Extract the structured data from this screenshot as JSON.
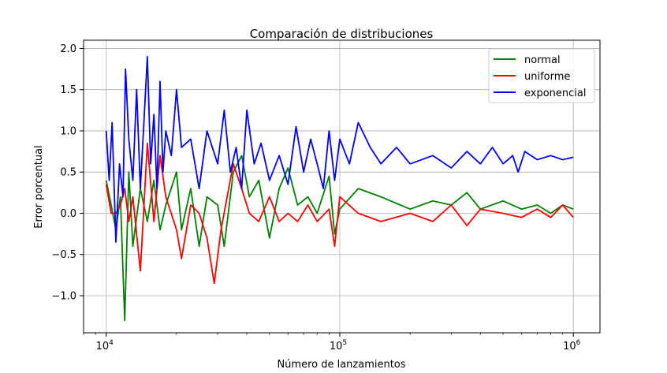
{
  "chart_data": {
    "type": "line",
    "title": "Comparación de distribuciones",
    "xlabel": "Número de lanzamientos",
    "ylabel": "Error porcentual",
    "xscale": "log",
    "xlim": [
      8000,
      1300000
    ],
    "ylim": [
      -1.45,
      2.1
    ],
    "xticks": [
      10000,
      100000,
      1000000
    ],
    "xtick_labels": [
      {
        "base": "10",
        "exp": "4"
      },
      {
        "base": "10",
        "exp": "5"
      },
      {
        "base": "10",
        "exp": "6"
      }
    ],
    "yticks": [
      -1.0,
      -0.5,
      0.0,
      0.5,
      1.0,
      1.5,
      2.0
    ],
    "ytick_labels": [
      "−1.0",
      "−0.5",
      "0.0",
      "0.5",
      "1.0",
      "1.5",
      "2.0"
    ],
    "grid": true,
    "legend_position": "top-right",
    "series": [
      {
        "name": "normal",
        "color": "#008000",
        "points": [
          [
            10000,
            0.4
          ],
          [
            10500,
            0.1
          ],
          [
            11000,
            -0.2
          ],
          [
            11500,
            0.2
          ],
          [
            12000,
            -1.3
          ],
          [
            12500,
            0.5
          ],
          [
            13000,
            -0.4
          ],
          [
            14000,
            0.3
          ],
          [
            15000,
            -0.1
          ],
          [
            16000,
            0.4
          ],
          [
            17000,
            -0.2
          ],
          [
            18000,
            0.1
          ],
          [
            20000,
            0.5
          ],
          [
            21000,
            -0.2
          ],
          [
            23000,
            0.3
          ],
          [
            25000,
            -0.4
          ],
          [
            27000,
            0.2
          ],
          [
            30000,
            0.1
          ],
          [
            32000,
            -0.4
          ],
          [
            35000,
            0.5
          ],
          [
            38000,
            0.7
          ],
          [
            41000,
            0.2
          ],
          [
            45000,
            0.4
          ],
          [
            50000,
            -0.3
          ],
          [
            55000,
            0.3
          ],
          [
            60000,
            0.55
          ],
          [
            66000,
            0.1
          ],
          [
            73000,
            0.2
          ],
          [
            80000,
            0.0
          ],
          [
            90000,
            0.45
          ],
          [
            95000,
            -0.25
          ],
          [
            100000,
            0.05
          ],
          [
            120000,
            0.3
          ],
          [
            150000,
            0.2
          ],
          [
            200000,
            0.05
          ],
          [
            250000,
            0.15
          ],
          [
            300000,
            0.1
          ],
          [
            350000,
            0.25
          ],
          [
            400000,
            0.05
          ],
          [
            500000,
            0.15
          ],
          [
            600000,
            0.05
          ],
          [
            700000,
            0.1
          ],
          [
            800000,
            0.0
          ],
          [
            900000,
            0.1
          ],
          [
            1000000,
            0.05
          ]
        ]
      },
      {
        "name": "uniforme",
        "color": "#ff0000",
        "points": [
          [
            10000,
            0.35
          ],
          [
            10500,
            0.0
          ],
          [
            11000,
            0.0
          ],
          [
            11500,
            0.1
          ],
          [
            12000,
            0.3
          ],
          [
            12500,
            -0.1
          ],
          [
            13000,
            0.2
          ],
          [
            14000,
            -0.7
          ],
          [
            15000,
            0.85
          ],
          [
            16000,
            -0.1
          ],
          [
            17000,
            0.7
          ],
          [
            18000,
            0.2
          ],
          [
            20000,
            -0.2
          ],
          [
            21000,
            -0.55
          ],
          [
            23000,
            0.1
          ],
          [
            25000,
            0.0
          ],
          [
            27000,
            -0.3
          ],
          [
            29000,
            -0.85
          ],
          [
            31000,
            -0.2
          ],
          [
            35000,
            0.6
          ],
          [
            38000,
            0.3
          ],
          [
            41000,
            0.0
          ],
          [
            45000,
            -0.1
          ],
          [
            50000,
            0.2
          ],
          [
            55000,
            -0.1
          ],
          [
            60000,
            0.0
          ],
          [
            66000,
            -0.1
          ],
          [
            73000,
            0.1
          ],
          [
            80000,
            -0.1
          ],
          [
            90000,
            0.05
          ],
          [
            95000,
            -0.4
          ],
          [
            100000,
            0.2
          ],
          [
            120000,
            0.0
          ],
          [
            150000,
            -0.1
          ],
          [
            200000,
            0.0
          ],
          [
            250000,
            -0.1
          ],
          [
            300000,
            0.1
          ],
          [
            350000,
            -0.15
          ],
          [
            400000,
            0.05
          ],
          [
            500000,
            0.0
          ],
          [
            600000,
            -0.05
          ],
          [
            700000,
            0.05
          ],
          [
            800000,
            -0.05
          ],
          [
            900000,
            0.1
          ],
          [
            1000000,
            -0.05
          ]
        ]
      },
      {
        "name": "exponencial",
        "color": "#0000ff",
        "points": [
          [
            10000,
            1.0
          ],
          [
            10300,
            0.4
          ],
          [
            10600,
            1.1
          ],
          [
            11000,
            -0.35
          ],
          [
            11400,
            0.6
          ],
          [
            11800,
            0.2
          ],
          [
            12100,
            1.75
          ],
          [
            12500,
            0.9
          ],
          [
            13000,
            0.4
          ],
          [
            13500,
            1.5
          ],
          [
            14000,
            0.3
          ],
          [
            14500,
            1.1
          ],
          [
            15000,
            1.9
          ],
          [
            15500,
            0.6
          ],
          [
            16000,
            1.2
          ],
          [
            16500,
            0.3
          ],
          [
            17000,
            1.6
          ],
          [
            17500,
            0.5
          ],
          [
            18000,
            1.0
          ],
          [
            19000,
            0.7
          ],
          [
            20000,
            1.5
          ],
          [
            21000,
            0.8
          ],
          [
            23000,
            0.9
          ],
          [
            25000,
            0.3
          ],
          [
            27000,
            1.0
          ],
          [
            30000,
            0.6
          ],
          [
            32000,
            1.25
          ],
          [
            34000,
            0.5
          ],
          [
            36000,
            0.8
          ],
          [
            38000,
            0.3
          ],
          [
            40000,
            1.25
          ],
          [
            43000,
            0.6
          ],
          [
            46000,
            0.85
          ],
          [
            50000,
            0.4
          ],
          [
            55000,
            0.7
          ],
          [
            60000,
            0.35
          ],
          [
            65000,
            1.05
          ],
          [
            70000,
            0.5
          ],
          [
            75000,
            0.9
          ],
          [
            80000,
            0.6
          ],
          [
            85000,
            0.3
          ],
          [
            90000,
            1.0
          ],
          [
            95000,
            0.4
          ],
          [
            100000,
            0.9
          ],
          [
            110000,
            0.6
          ],
          [
            120000,
            1.1
          ],
          [
            135000,
            0.8
          ],
          [
            150000,
            0.6
          ],
          [
            175000,
            0.8
          ],
          [
            200000,
            0.6
          ],
          [
            250000,
            0.7
          ],
          [
            300000,
            0.55
          ],
          [
            350000,
            0.75
          ],
          [
            400000,
            0.6
          ],
          [
            450000,
            0.8
          ],
          [
            500000,
            0.6
          ],
          [
            550000,
            0.7
          ],
          [
            580000,
            0.5
          ],
          [
            620000,
            0.75
          ],
          [
            700000,
            0.65
          ],
          [
            800000,
            0.7
          ],
          [
            900000,
            0.65
          ],
          [
            1000000,
            0.68
          ]
        ]
      }
    ]
  }
}
